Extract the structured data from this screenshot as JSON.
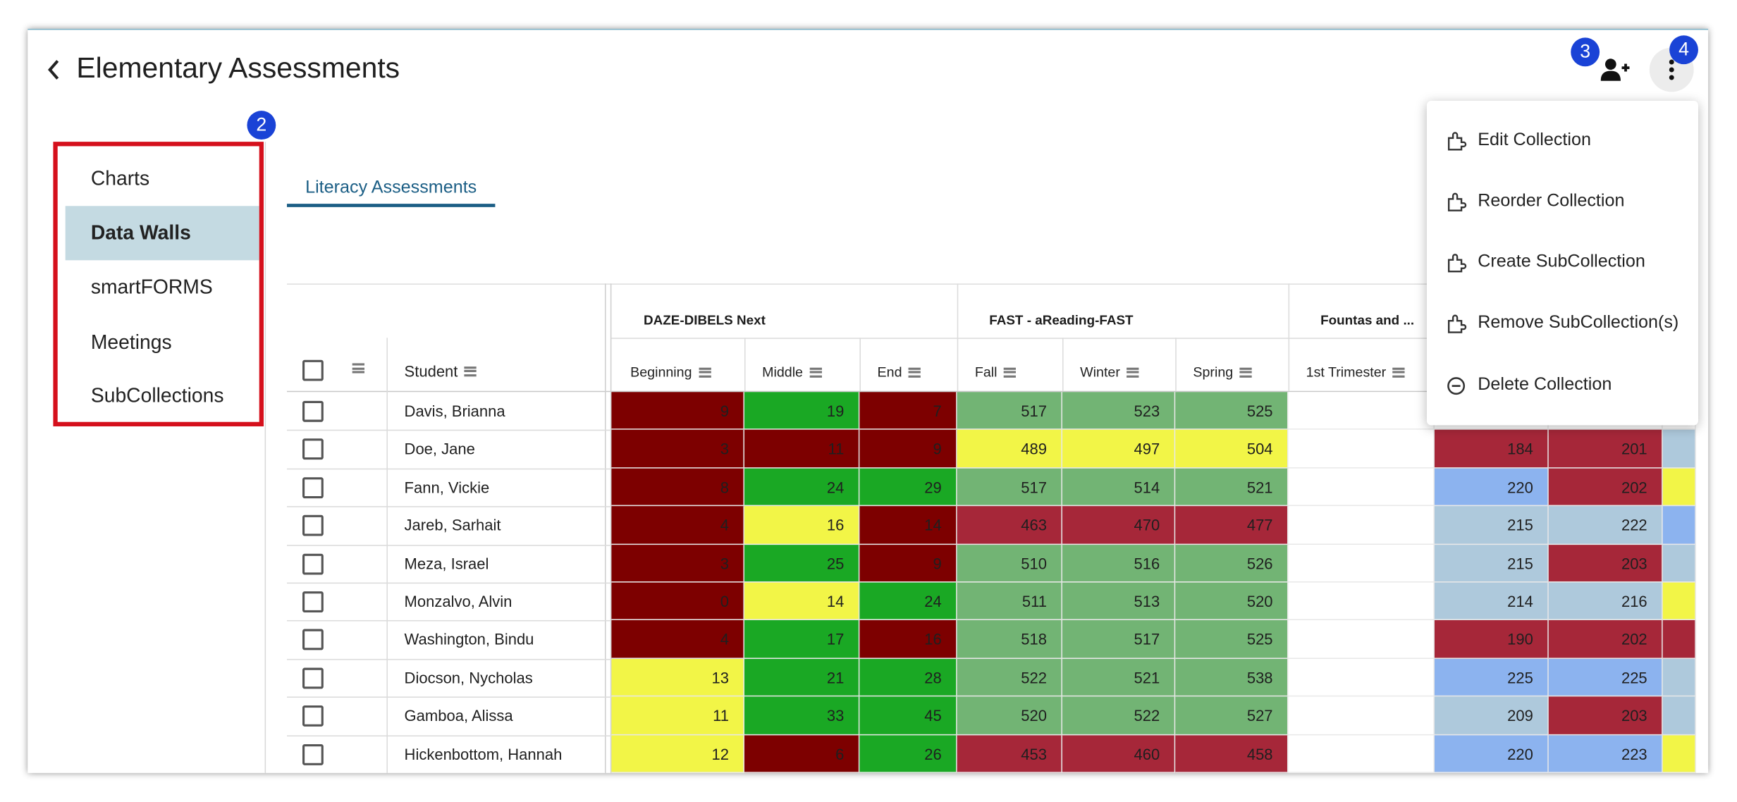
{
  "header": {
    "title": "Elementary Assessments"
  },
  "badges": {
    "b2": "2",
    "b3": "3",
    "b4": "4"
  },
  "sidebar": {
    "items": [
      {
        "label": "Charts",
        "active": false
      },
      {
        "label": "Data Walls",
        "active": true
      },
      {
        "label": "smartFORMS",
        "active": false
      },
      {
        "label": "Meetings",
        "active": false
      },
      {
        "label": "SubCollections",
        "active": false
      }
    ]
  },
  "tabs": {
    "active_label": "Literacy Assessments"
  },
  "table": {
    "groups": [
      "DAZE-DIBELS Next",
      "FAST - aReading-FAST",
      "Fountas and ..."
    ],
    "columns": [
      "Student",
      "Beginning",
      "Middle",
      "End",
      "Fall",
      "Winter",
      "Spring",
      "1st Trimester"
    ],
    "rows": [
      {
        "name": "Davis, Brianna",
        "scores": [
          "9",
          "19",
          "7",
          "517",
          "523",
          "525",
          "",
          "",
          ""
        ]
      },
      {
        "name": "Doe, Jane",
        "scores": [
          "3",
          "11",
          "9",
          "489",
          "497",
          "504",
          "",
          "184",
          "201"
        ]
      },
      {
        "name": "Fann, Vickie",
        "scores": [
          "8",
          "24",
          "29",
          "517",
          "514",
          "521",
          "",
          "220",
          "202"
        ]
      },
      {
        "name": "Jareb, Sarhait",
        "scores": [
          "4",
          "16",
          "14",
          "463",
          "470",
          "477",
          "",
          "215",
          "222"
        ]
      },
      {
        "name": "Meza, Israel",
        "scores": [
          "3",
          "25",
          "9",
          "510",
          "516",
          "526",
          "",
          "215",
          "203"
        ]
      },
      {
        "name": "Monzalvo, Alvin",
        "scores": [
          "0",
          "14",
          "24",
          "511",
          "513",
          "520",
          "",
          "214",
          "216"
        ]
      },
      {
        "name": "Washington, Bindu",
        "scores": [
          "4",
          "17",
          "16",
          "518",
          "517",
          "525",
          "",
          "190",
          "202"
        ]
      },
      {
        "name": "Diocson, Nycholas",
        "scores": [
          "13",
          "21",
          "28",
          "522",
          "521",
          "538",
          "",
          "225",
          "225"
        ]
      },
      {
        "name": "Gamboa, Alissa",
        "scores": [
          "11",
          "33",
          "45",
          "520",
          "522",
          "527",
          "",
          "209",
          "203"
        ]
      },
      {
        "name": "Hickenbottom, Hannah",
        "scores": [
          "12",
          "6",
          "26",
          "453",
          "460",
          "458",
          "",
          "220",
          "223"
        ]
      }
    ],
    "colors": [
      [
        "#7d0000",
        "#1aa824",
        "#7d0000",
        "#72b474",
        "#72b474",
        "#72b474",
        "#ffffff",
        "#ffffff",
        "#ffffff",
        "#ffffff"
      ],
      [
        "#7d0000",
        "#7d0000",
        "#7d0000",
        "#f2f547",
        "#f2f547",
        "#f2f547",
        "#ffffff",
        "#a62739",
        "#a62739",
        "#aec9dc"
      ],
      [
        "#7d0000",
        "#1aa824",
        "#1aa824",
        "#72b474",
        "#72b474",
        "#72b474",
        "#ffffff",
        "#8cb3ef",
        "#a62739",
        "#f2f547"
      ],
      [
        "#7d0000",
        "#f2f547",
        "#7d0000",
        "#a62739",
        "#a62739",
        "#a62739",
        "#ffffff",
        "#aec9dc",
        "#aec9dc",
        "#8cb3ef"
      ],
      [
        "#7d0000",
        "#1aa824",
        "#7d0000",
        "#72b474",
        "#72b474",
        "#72b474",
        "#ffffff",
        "#aec9dc",
        "#a62739",
        "#aec9dc"
      ],
      [
        "#7d0000",
        "#f2f547",
        "#1aa824",
        "#72b474",
        "#72b474",
        "#72b474",
        "#ffffff",
        "#aec9dc",
        "#aec9dc",
        "#f2f547"
      ],
      [
        "#7d0000",
        "#1aa824",
        "#7d0000",
        "#72b474",
        "#72b474",
        "#72b474",
        "#ffffff",
        "#a62739",
        "#a62739",
        "#a62739"
      ],
      [
        "#f2f547",
        "#1aa824",
        "#1aa824",
        "#72b474",
        "#72b474",
        "#72b474",
        "#ffffff",
        "#8cb3ef",
        "#8cb3ef",
        "#aec9dc"
      ],
      [
        "#f2f547",
        "#1aa824",
        "#1aa824",
        "#72b474",
        "#72b474",
        "#72b474",
        "#ffffff",
        "#aec9dc",
        "#a62739",
        "#aec9dc"
      ],
      [
        "#f2f547",
        "#7d0000",
        "#1aa824",
        "#a62739",
        "#a62739",
        "#a62739",
        "#ffffff",
        "#8cb3ef",
        "#8cb3ef",
        "#f2f547"
      ]
    ]
  },
  "menu": {
    "items": [
      {
        "label": "Edit Collection",
        "icon": "puzzle-icon"
      },
      {
        "label": "Reorder Collection",
        "icon": "puzzle-icon"
      },
      {
        "label": "Create SubCollection",
        "icon": "puzzle-icon"
      },
      {
        "label": "Remove SubCollection(s)",
        "icon": "puzzle-icon"
      },
      {
        "label": "Delete Collection",
        "icon": "minus-circle-icon"
      }
    ]
  },
  "icons": {
    "back": "chevron-left-icon",
    "add_user": "person-add-icon",
    "more": "more-vertical-icon",
    "menu": "column-menu-icon"
  }
}
